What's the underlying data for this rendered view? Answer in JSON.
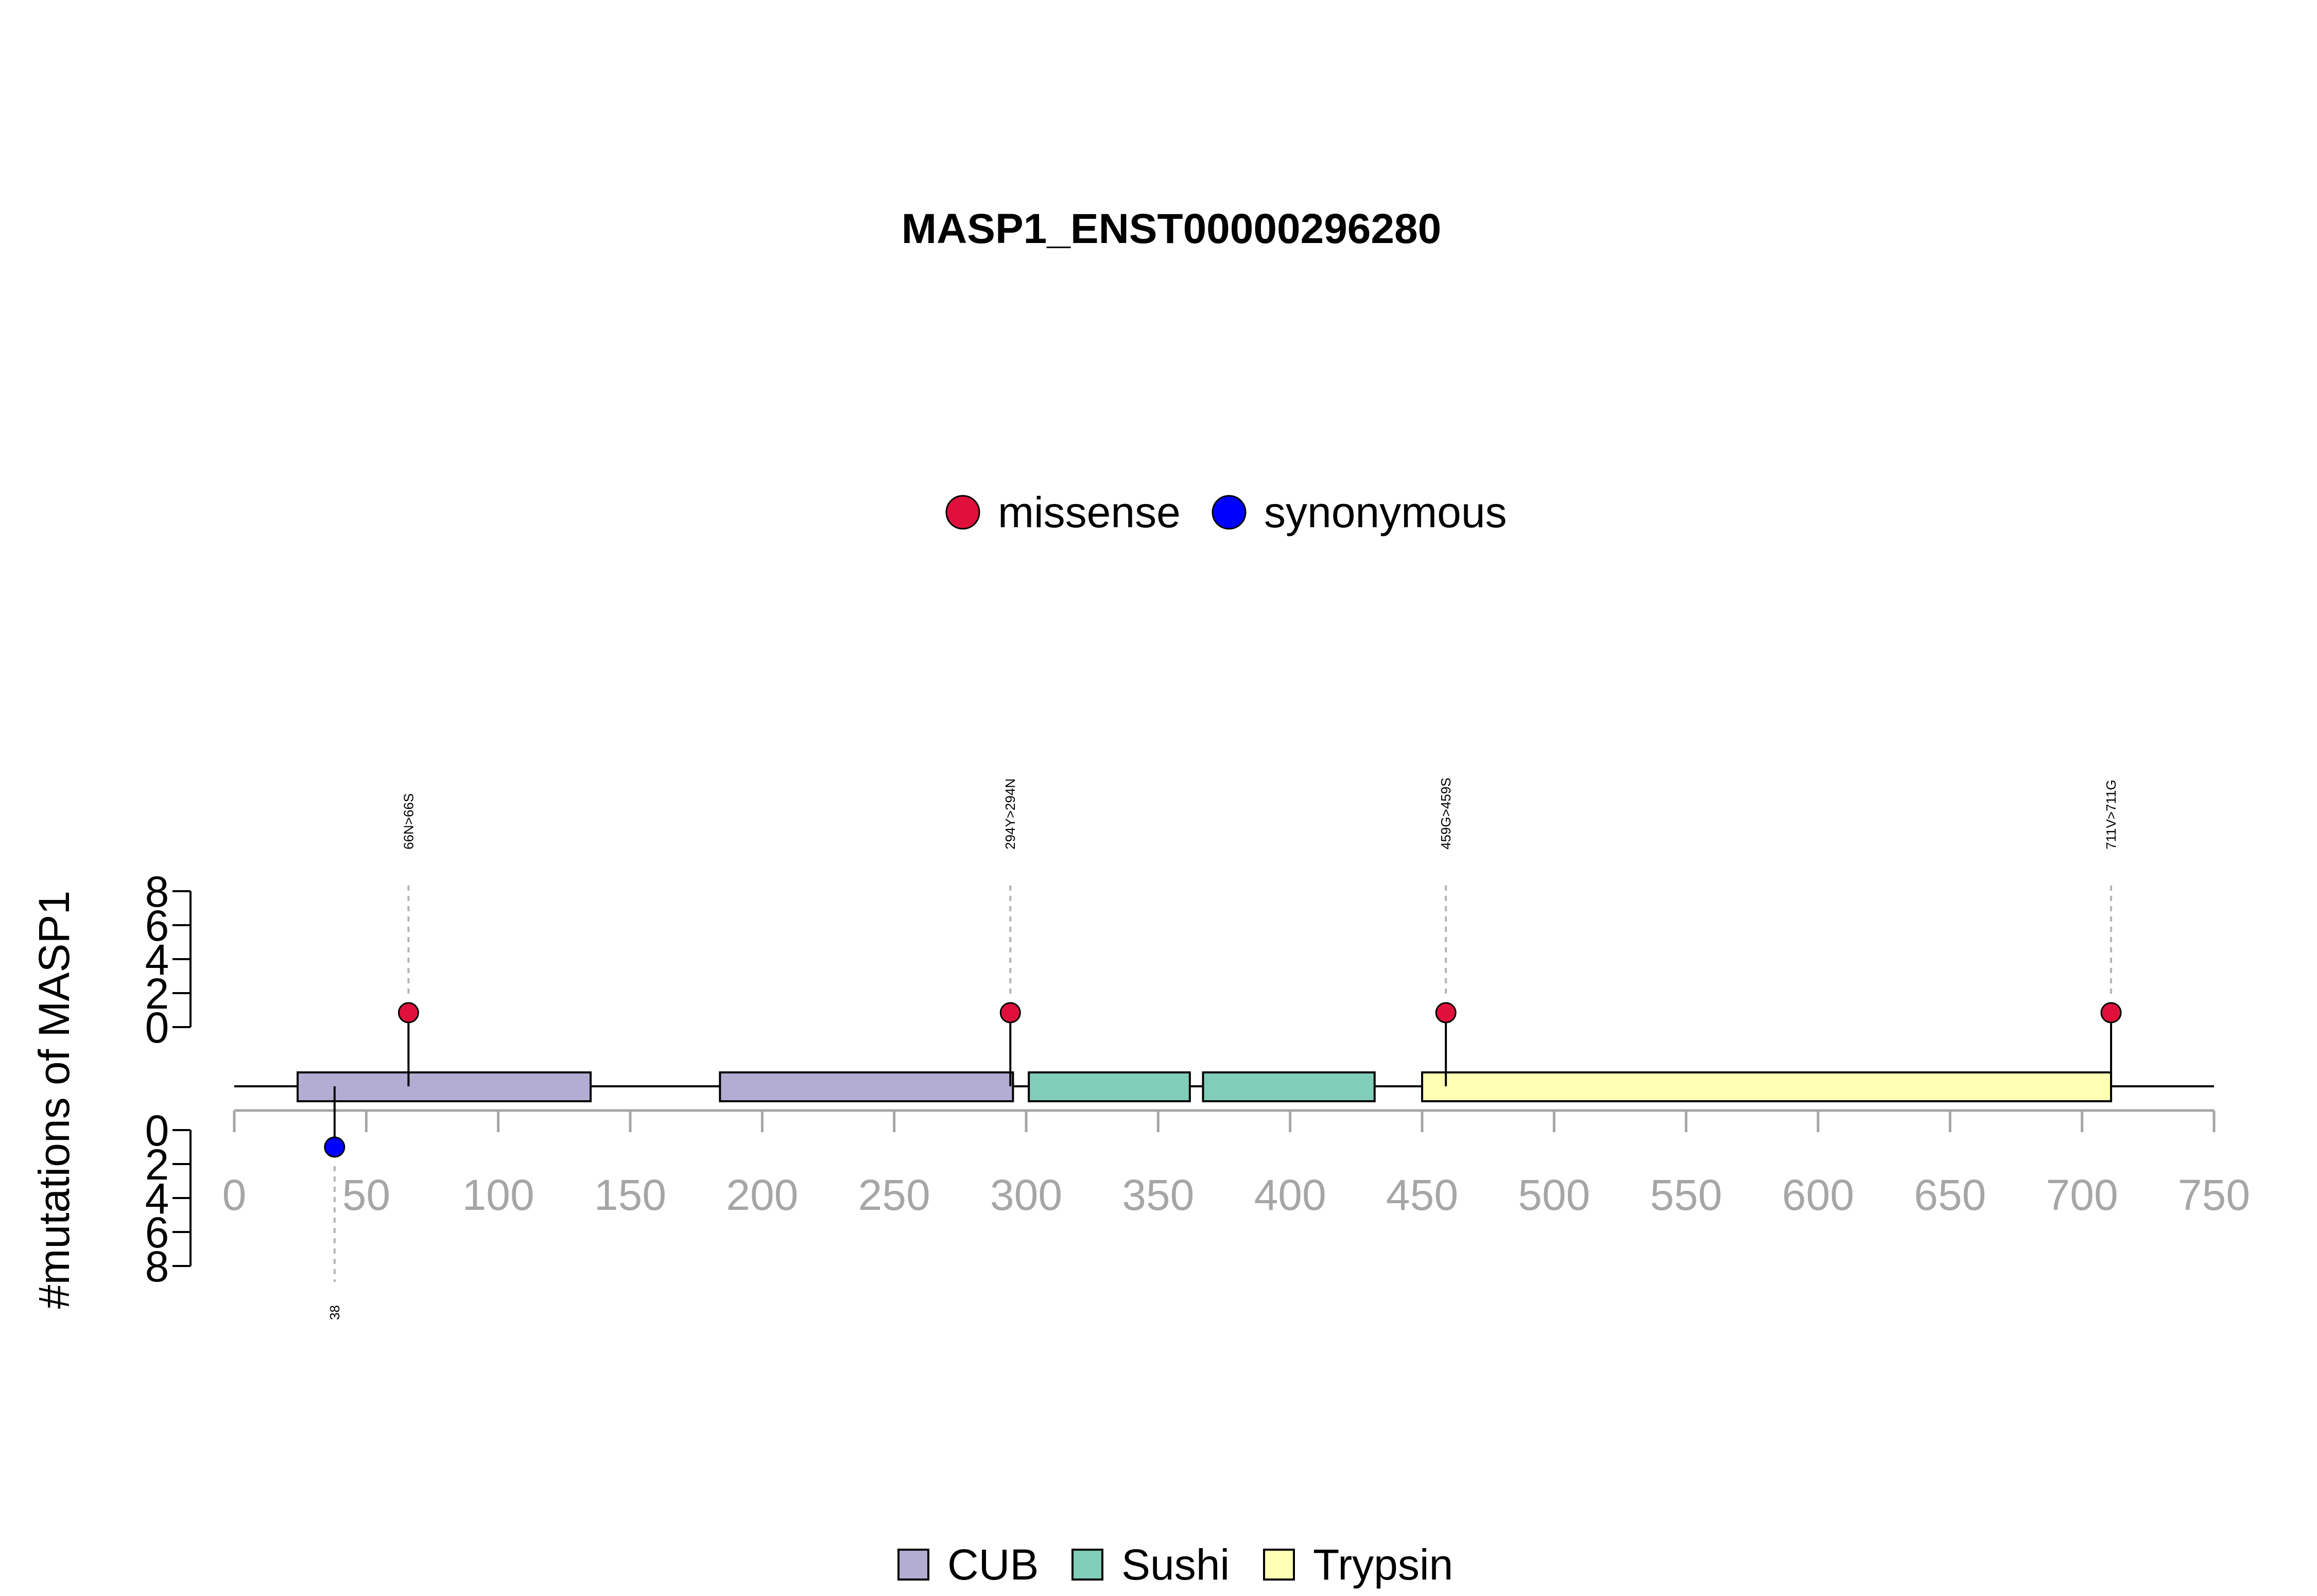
{
  "chart_data": {
    "type": "lollipop",
    "title": "MASP1_ENST00000296280",
    "ylabel": "#mutations of MASP1",
    "xlim": [
      0,
      750
    ],
    "x_ticks": [
      0,
      50,
      100,
      150,
      200,
      250,
      300,
      350,
      400,
      450,
      500,
      550,
      600,
      650,
      700,
      750
    ],
    "y_ticks_top": [
      0,
      2,
      4,
      6,
      8
    ],
    "y_ticks_bottom": [
      0,
      2,
      4,
      6,
      8
    ],
    "mutation_legend": [
      {
        "name": "missense",
        "color": "#e0103c"
      },
      {
        "name": "synonymous",
        "color": "#0000ff"
      }
    ],
    "domain_legend": [
      {
        "name": "CUB",
        "color": "#b3acd3"
      },
      {
        "name": "Sushi",
        "color": "#80cdb9"
      },
      {
        "name": "Trypsin",
        "color": "#ffffb4"
      }
    ],
    "domains": [
      {
        "name": "CUB",
        "start": 24,
        "end": 135
      },
      {
        "name": "CUB",
        "start": 184,
        "end": 295
      },
      {
        "name": "Sushi",
        "start": 301,
        "end": 362
      },
      {
        "name": "Sushi",
        "start": 367,
        "end": 432
      },
      {
        "name": "Trypsin",
        "start": 450,
        "end": 711
      }
    ],
    "mutations": [
      {
        "position": 66,
        "label": "66N>66S",
        "type": "missense",
        "count": 1,
        "side": "top"
      },
      {
        "position": 294,
        "label": "294Y>294N",
        "type": "missense",
        "count": 1,
        "side": "top"
      },
      {
        "position": 459,
        "label": "459G>459S",
        "type": "missense",
        "count": 1,
        "side": "top"
      },
      {
        "position": 711,
        "label": "711V>711G",
        "type": "missense",
        "count": 1,
        "side": "top"
      },
      {
        "position": 38,
        "label": "38",
        "type": "synonymous",
        "count": 1,
        "side": "bottom"
      }
    ]
  }
}
